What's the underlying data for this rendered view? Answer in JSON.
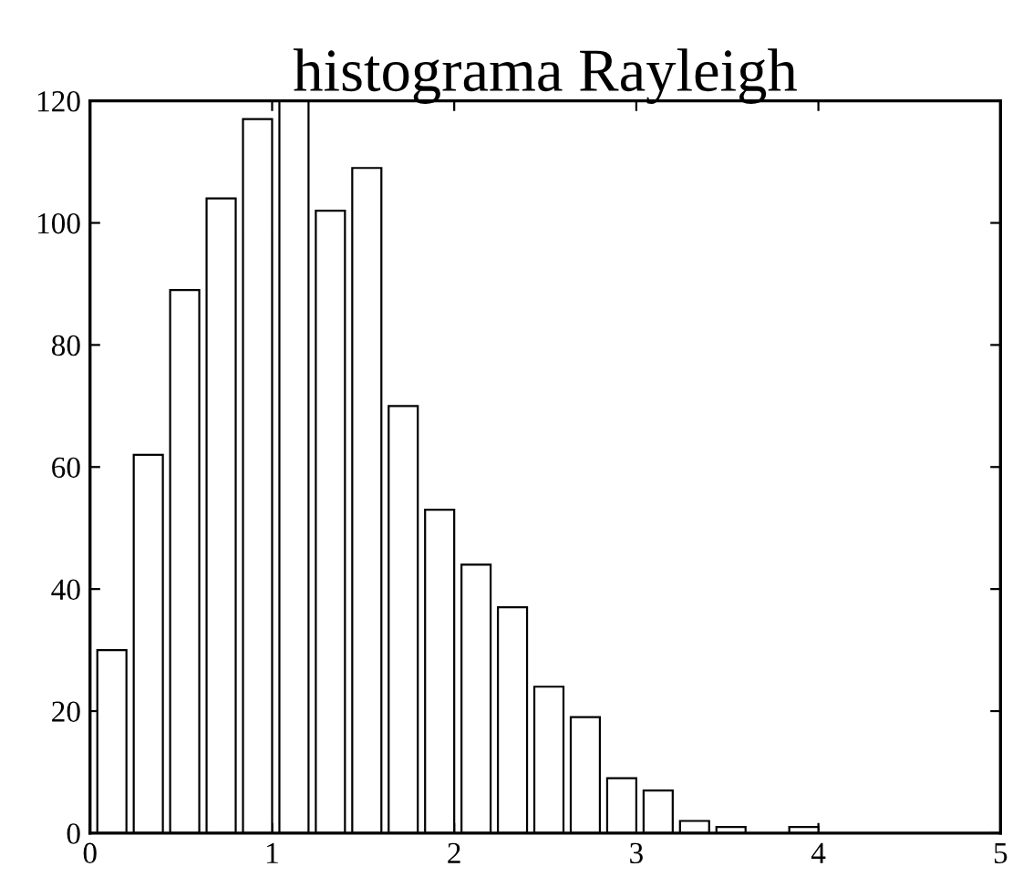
{
  "chart_data": {
    "type": "histogram",
    "title": "histograma Rayleigh",
    "bins": [
      0.02,
      0.22,
      0.42,
      0.62,
      0.82,
      1.02,
      1.22,
      1.42,
      1.62,
      1.82,
      2.02,
      2.22,
      2.42,
      2.62,
      2.82,
      3.02,
      3.22,
      3.42,
      3.62,
      3.82,
      4.02
    ],
    "values": [
      30,
      62,
      89,
      104,
      117,
      120,
      102,
      109,
      70,
      53,
      44,
      37,
      24,
      19,
      9,
      7,
      2,
      1,
      0,
      1
    ],
    "color": "#ffffff",
    "xlim": [
      0,
      5
    ],
    "xticks": [
      0,
      1,
      2,
      3,
      4,
      5
    ],
    "ylim": [
      0,
      120
    ],
    "yticks": [
      0,
      20,
      40,
      60,
      80,
      100,
      120
    ],
    "grid": false
  }
}
